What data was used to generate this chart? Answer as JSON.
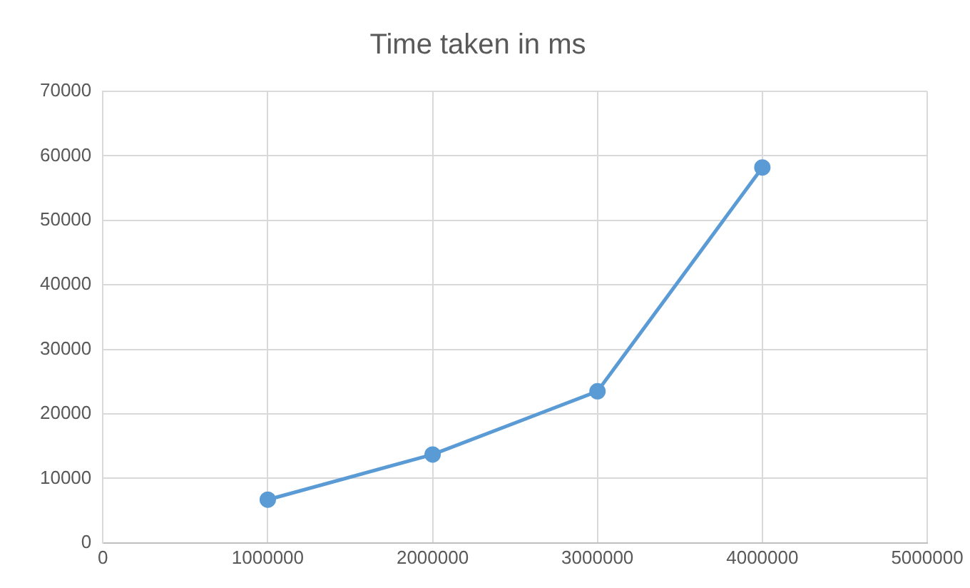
{
  "chart_data": {
    "type": "line",
    "title": "Time taken in ms",
    "x": [
      1000000,
      2000000,
      3000000,
      4000000
    ],
    "series": [
      {
        "color": "#5b9bd5",
        "values": [
          6700,
          13700,
          23500,
          58200
        ]
      }
    ],
    "xlim": [
      0,
      5000000
    ],
    "xticks": [
      0,
      1000000,
      2000000,
      3000000,
      4000000,
      5000000
    ],
    "ylim": [
      0,
      70000
    ],
    "yticks": [
      0,
      10000,
      20000,
      30000,
      40000,
      50000,
      60000,
      70000
    ],
    "grid": true,
    "legend": false,
    "marker": "circle",
    "line_style": "solid"
  }
}
